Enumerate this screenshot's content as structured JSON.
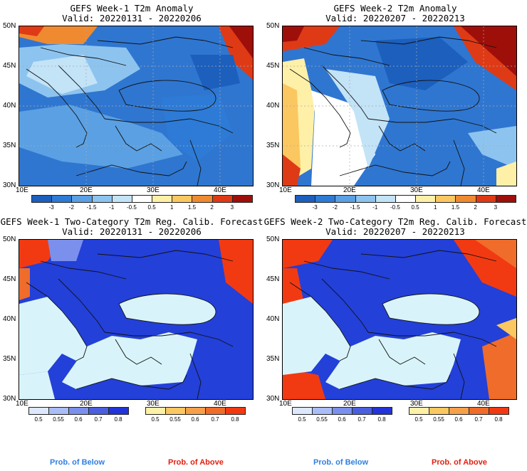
{
  "panels": [
    {
      "title": "GEFS Week-1 T2m Anomaly",
      "valid": "Valid: 20220131 - 20220206"
    },
    {
      "title": "GEFS Week-2 T2m Anomaly",
      "valid": "Valid: 20220207 - 20220213"
    },
    {
      "title": "GEFS Week-1 Two-Category T2m Reg. Calib. Forecast",
      "valid": "Valid: 20220131 - 20220206"
    },
    {
      "title": "GEFS Week-2 Two-Category T2m Reg. Calib. Forecast",
      "valid": "Valid: 20220207 - 20220213"
    }
  ],
  "lat_labels": [
    "50N",
    "45N",
    "40N",
    "35N",
    "30N"
  ],
  "lon_labels": [
    "10E",
    "20E",
    "30E",
    "40E"
  ],
  "anomaly_colorbar": {
    "ticks": [
      "-3",
      "-2",
      "-1.5",
      "-1",
      "-0.5",
      "0.5",
      "1",
      "1.5",
      "2",
      "3"
    ],
    "colors": [
      "#1c5fbd",
      "#2d7bd6",
      "#5aa0e3",
      "#8dc4ef",
      "#c3e3f7",
      "#ffffff",
      "#fff0a8",
      "#fbc760",
      "#f08a30",
      "#df3a16",
      "#9e0f0a"
    ]
  },
  "prob_below_colorbar": {
    "ticks": [
      "0.5",
      "0.55",
      "0.6",
      "0.7",
      "0.8"
    ],
    "colors": [
      "#dde8ff",
      "#aabdf7",
      "#7b90ec",
      "#4a5fe0",
      "#2233d9"
    ]
  },
  "prob_above_colorbar": {
    "ticks": [
      "0.5",
      "0.55",
      "0.6",
      "0.7",
      "0.8"
    ],
    "colors": [
      "#fff0a8",
      "#fbc760",
      "#f6a04a",
      "#f06c2a",
      "#f23a12"
    ]
  },
  "legend_labels": {
    "below": "Prob. of Below",
    "above": "Prob. of Above"
  },
  "legend_colors": {
    "below": "#2f80e0",
    "above": "#e02010"
  },
  "map_colors": {
    "sea_light": "#d8f4fa",
    "land_blue": "#2340d8",
    "anom_blue": "#2f76d0"
  }
}
